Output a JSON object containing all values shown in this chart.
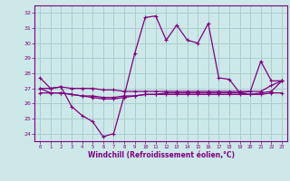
{
  "xlabel": "Windchill (Refroidissement éolien,°C)",
  "hours": [
    0,
    1,
    2,
    3,
    4,
    5,
    6,
    7,
    8,
    9,
    10,
    11,
    12,
    13,
    14,
    15,
    16,
    17,
    18,
    19,
    20,
    21,
    22,
    23
  ],
  "line1": [
    27.7,
    27.0,
    27.1,
    25.8,
    25.2,
    24.8,
    23.8,
    24.0,
    26.5,
    29.3,
    31.7,
    31.8,
    30.2,
    31.2,
    30.2,
    30.0,
    31.3,
    27.7,
    27.6,
    26.7,
    26.8,
    28.8,
    27.5,
    27.5
  ],
  "line2": [
    27.0,
    27.0,
    27.1,
    27.0,
    27.0,
    27.0,
    26.9,
    26.9,
    26.8,
    26.8,
    26.8,
    26.8,
    26.8,
    26.8,
    26.8,
    26.8,
    26.8,
    26.8,
    26.8,
    26.8,
    26.8,
    26.8,
    27.2,
    27.5
  ],
  "line3": [
    26.7,
    26.7,
    26.7,
    26.6,
    26.5,
    26.5,
    26.4,
    26.4,
    26.5,
    26.5,
    26.6,
    26.6,
    26.6,
    26.6,
    26.6,
    26.6,
    26.6,
    26.6,
    26.6,
    26.6,
    26.6,
    26.6,
    26.7,
    26.7
  ],
  "line4": [
    27.0,
    26.7,
    26.7,
    26.6,
    26.5,
    26.4,
    26.3,
    26.3,
    26.4,
    26.5,
    26.6,
    26.6,
    26.7,
    26.7,
    26.7,
    26.7,
    26.7,
    26.7,
    26.7,
    26.7,
    26.6,
    26.7,
    26.8,
    27.5
  ],
  "line_color": "#800080",
  "bg_color": "#cce8e8",
  "grid_color": "#aacece",
  "ylim": [
    23.5,
    32.5
  ],
  "yticks": [
    24,
    25,
    26,
    27,
    28,
    29,
    30,
    31,
    32
  ]
}
